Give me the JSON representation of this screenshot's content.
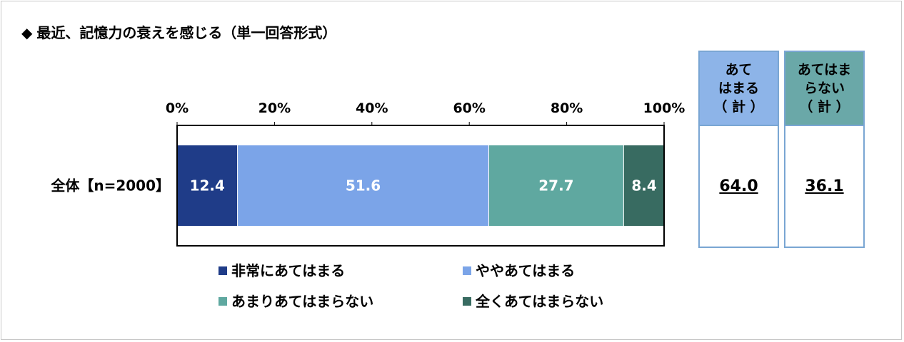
{
  "title": {
    "marker": "◆",
    "text": "最近、記憶力の衰えを感じる（単一回答形式）"
  },
  "chart_data": {
    "type": "bar",
    "orientation": "horizontal-stacked-100",
    "x_ticks": [
      "0%",
      "20%",
      "40%",
      "60%",
      "80%",
      "100%"
    ],
    "xlim": [
      0,
      100
    ],
    "categories": [
      "全体【n=2000】"
    ],
    "series": [
      {
        "name": "非常にあてはまる",
        "values": [
          12.4
        ],
        "label": "12.4",
        "color": "#1f3c88"
      },
      {
        "name": "ややあてはまる",
        "values": [
          51.6
        ],
        "label": "51.6",
        "color": "#7ba4e8"
      },
      {
        "name": "あまりあてはまらない",
        "values": [
          27.7
        ],
        "label": "27.7",
        "color": "#5fa8a0"
      },
      {
        "name": "全くあてはまらない",
        "values": [
          8.4
        ],
        "label": "8.4",
        "color": "#386b61"
      }
    ],
    "legend_position": "bottom"
  },
  "summary": [
    {
      "header_lines": [
        "あて",
        "はまる",
        "（ 計 ）"
      ],
      "value": "64.0",
      "header_color": "#8db4e8"
    },
    {
      "header_lines": [
        "あてはま",
        "らない",
        "（ 計 ）"
      ],
      "value": "36.1",
      "header_color": "#6aa8a8"
    }
  ]
}
